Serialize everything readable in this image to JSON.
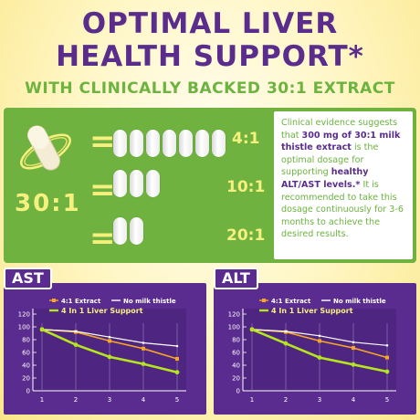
{
  "header": {
    "line1": "OPTIMAL LIVER",
    "line2": "HEALTH SUPPORT*",
    "subline": "WITH CLINICALLY BACKED 30:1 EXTRACT"
  },
  "ratios": {
    "main": "30:1",
    "rows": [
      {
        "equals": "=",
        "label": "4:1",
        "pills": 7
      },
      {
        "equals": "=",
        "label": "10:1",
        "pills": 3
      },
      {
        "equals": "=",
        "label": "20:1",
        "pills": 2
      }
    ]
  },
  "callout": {
    "part1": "Clinical evidence suggests that ",
    "bold1": "300 mg of 30:1 milk thistle extract",
    "part2": " is the optimal dosage for supporting ",
    "bold2": "healthy ALT/AST levels.*",
    "part3": " It is recommended to take this dosage continuously for 3-6 months to achieve the desired results."
  },
  "colors": {
    "purple": "#5b2c8f",
    "green": "#6fb23f",
    "lime": "#b5e61d",
    "orange": "#f5a623",
    "yellow": "#f6f17e"
  },
  "chart_data": [
    {
      "type": "line",
      "title": "AST",
      "x": [
        1,
        2,
        3,
        4,
        5
      ],
      "ylim": [
        0,
        120
      ],
      "yticks": [
        0,
        20,
        40,
        60,
        80,
        100,
        120
      ],
      "series": [
        {
          "name": "4:1 Extract",
          "values": [
            96,
            92,
            78,
            66,
            50
          ]
        },
        {
          "name": "No milk thistle",
          "values": [
            96,
            93,
            84,
            75,
            70
          ]
        },
        {
          "name": "4 In 1 Liver Support",
          "values": [
            96,
            72,
            53,
            42,
            29
          ]
        }
      ]
    },
    {
      "type": "line",
      "title": "ALT",
      "x": [
        1,
        2,
        3,
        4,
        5
      ],
      "ylim": [
        0,
        120
      ],
      "yticks": [
        0,
        20,
        40,
        60,
        80,
        100,
        120
      ],
      "series": [
        {
          "name": "4:1 Extract",
          "values": [
            96,
            92,
            78,
            67,
            52
          ]
        },
        {
          "name": "No milk thistle",
          "values": [
            96,
            93,
            86,
            76,
            71
          ]
        },
        {
          "name": "4 In 1 Liver Support",
          "values": [
            96,
            74,
            52,
            41,
            30
          ]
        }
      ]
    }
  ]
}
